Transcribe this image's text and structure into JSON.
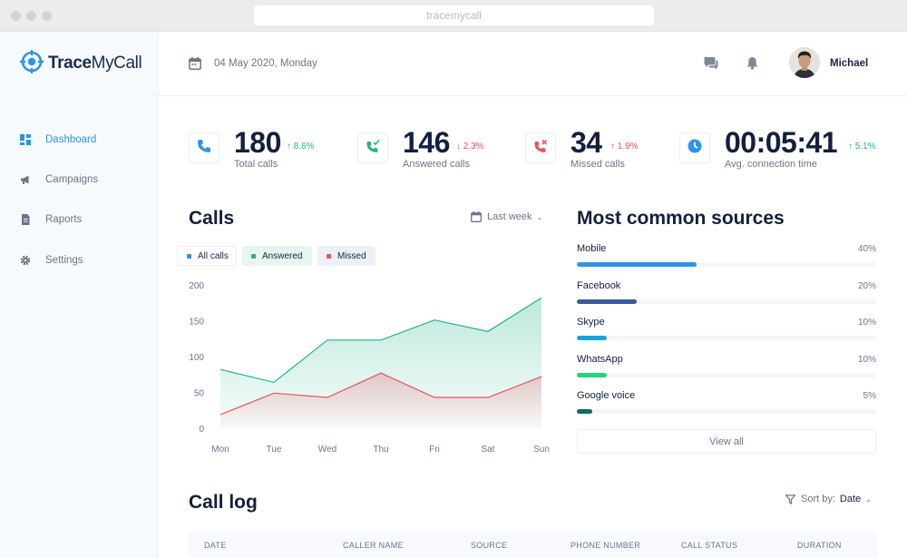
{
  "browser": {
    "url": "tracemycall"
  },
  "app": {
    "logo_bold": "Trace",
    "logo_light": "MyCall"
  },
  "sidebar": {
    "items": [
      {
        "label": "Dashboard",
        "icon": "dashboard-icon",
        "active": true
      },
      {
        "label": "Campaigns",
        "icon": "megaphone-icon",
        "active": false
      },
      {
        "label": "Raports",
        "icon": "document-icon",
        "active": false
      },
      {
        "label": "Settings",
        "icon": "gear-icon",
        "active": false
      }
    ]
  },
  "header": {
    "date": "04 May 2020, Monday",
    "user_name": "Michael"
  },
  "stats": [
    {
      "value": "180",
      "change": "8.6%",
      "direction": "up",
      "label": "Total calls",
      "icon": "phone-icon"
    },
    {
      "value": "146",
      "change": "2.3%",
      "direction": "down",
      "label": "Answered calls",
      "icon": "phone-answered-icon"
    },
    {
      "value": "34",
      "change": "1.9%",
      "direction": "up",
      "label": "Missed calls",
      "icon": "phone-missed-icon"
    },
    {
      "value": "00:05:41",
      "change": "5.1%",
      "direction": "up",
      "label": "Avg. connection time",
      "icon": "clock-icon"
    }
  ],
  "calls": {
    "title": "Calls",
    "range": "Last week",
    "legend": [
      {
        "label": "All calls",
        "color": "#2d95e3"
      },
      {
        "label": "Answered",
        "color": "#24b38c"
      },
      {
        "label": "Missed",
        "color": "#e5535f"
      }
    ]
  },
  "chart_data": {
    "type": "area",
    "categories": [
      "Mon",
      "Tue",
      "Wed",
      "Thu",
      "Fri",
      "Sat",
      "Sun"
    ],
    "y_ticks": [
      0,
      50,
      100,
      150,
      200
    ],
    "ylim": [
      0,
      200
    ],
    "series": [
      {
        "name": "Answered",
        "color": "#24b38c",
        "values": [
          82,
          64,
          123,
          123,
          151,
          135,
          182
        ]
      },
      {
        "name": "Missed",
        "color": "#e5535f",
        "values": [
          19,
          49,
          43,
          77,
          43,
          43,
          72
        ]
      }
    ],
    "grid": false
  },
  "sources": {
    "title": "Most common sources",
    "items": [
      {
        "name": "Mobile",
        "pct": "40%",
        "fill": 0.4,
        "color": "#2d95e3"
      },
      {
        "name": "Facebook",
        "pct": "20%",
        "fill": 0.2,
        "color": "#3b5a9b"
      },
      {
        "name": "Skype",
        "pct": "10%",
        "fill": 0.1,
        "color": "#14a6dd"
      },
      {
        "name": "WhatsApp",
        "pct": "10%",
        "fill": 0.1,
        "color": "#20d47b"
      },
      {
        "name": "Google voice",
        "pct": "5%",
        "fill": 0.05,
        "color": "#0e6d5f"
      }
    ],
    "view_all": "View all"
  },
  "call_log": {
    "title": "Call log",
    "sort_label": "Sort by:",
    "sort_value": "Date",
    "columns": [
      "DATE",
      "CALLER NAME",
      "SOURCE",
      "PHONE NUMBER",
      "CALL STATUS",
      "DURATION"
    ]
  }
}
